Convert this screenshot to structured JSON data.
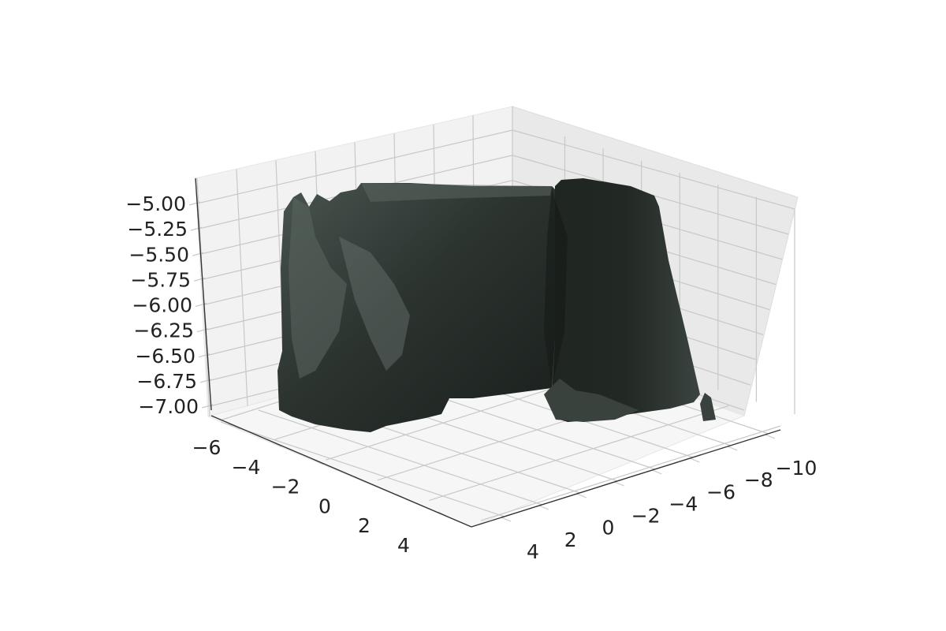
{
  "chart_data": {
    "type": "surface3d",
    "title": "",
    "xlabel": "",
    "ylabel": "",
    "zlabel": "",
    "x_ticks": [
      "−10",
      "−8",
      "−6",
      "−4",
      "−2",
      "0",
      "2",
      "4"
    ],
    "y_ticks": [
      "−6",
      "−4",
      "−2",
      "0",
      "2",
      "4"
    ],
    "z_ticks": [
      "−5.00",
      "−5.25",
      "−5.50",
      "−5.75",
      "−6.00",
      "−6.25",
      "−6.50",
      "−6.75",
      "−7.00"
    ],
    "xlim": [
      -10,
      5
    ],
    "ylim": [
      -6,
      5
    ],
    "zlim": [
      -7,
      -5
    ],
    "grid": true,
    "surface_color": "#2a312d",
    "pane_color": "#f2f2f2"
  }
}
